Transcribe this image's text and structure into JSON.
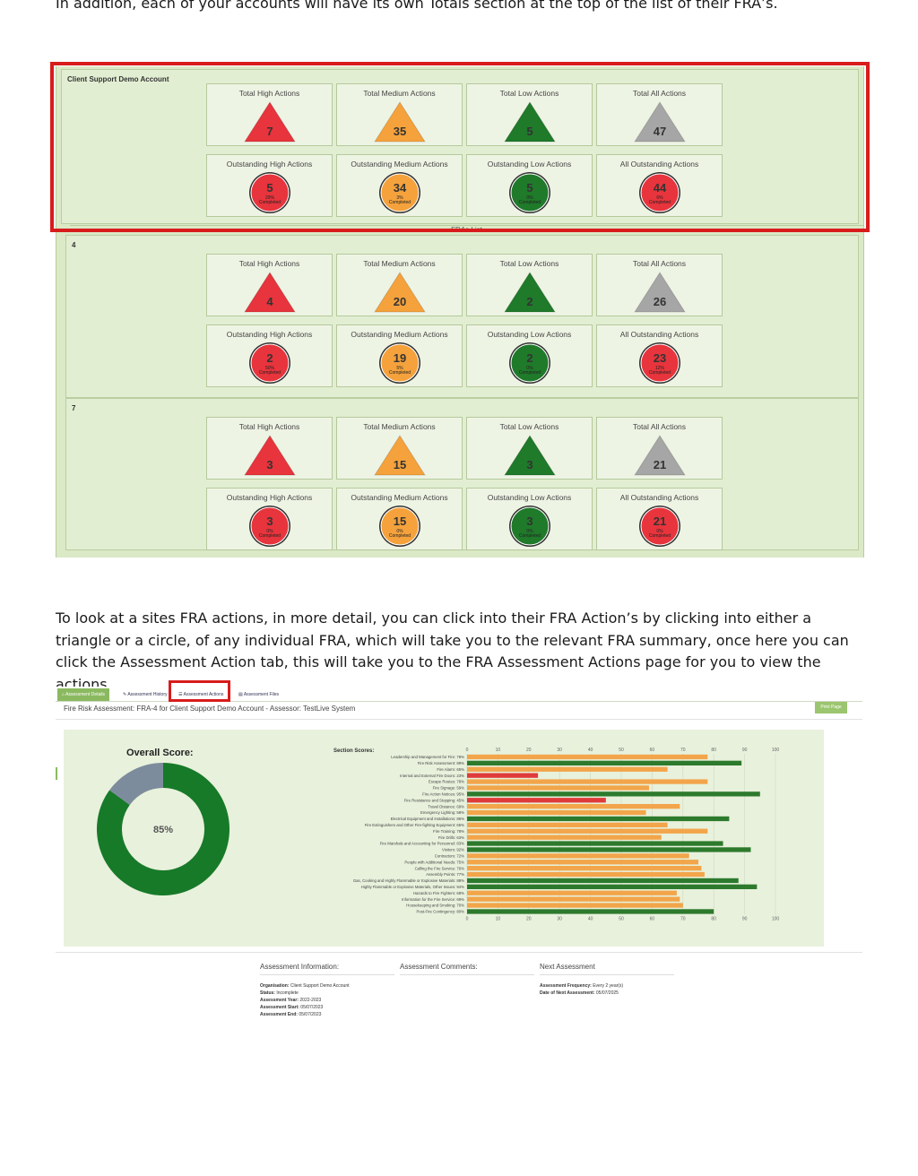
{
  "intro_text": "In addition, each of your accounts will have its own Totals section at the top of the list of their FRA’s.",
  "middle_text": "To look at a sites FRA actions, in more detail, you can click into their FRA Action’s by clicking into either a triangle or a circle, of any individual FRA, which will take you to the relevant FRA summary, once here you can click the Assessment Action tab, this will take you to the FRA Assessment Actions page for you to view the actions.",
  "colors": {
    "high": "#e8343c",
    "medium": "#f5a23c",
    "low": "#1f7a2a",
    "all": "#a6a6a6",
    "highlight": "#d81c1c"
  },
  "groups": [
    {
      "label": "Client Support Demo Account",
      "totals": [
        {
          "title": "Total High Actions",
          "value": "7",
          "level": "high"
        },
        {
          "title": "Total Medium Actions",
          "value": "35",
          "level": "medium"
        },
        {
          "title": "Total Low Actions",
          "value": "5",
          "level": "low"
        },
        {
          "title": "Total All Actions",
          "value": "47",
          "level": "all"
        }
      ],
      "outstanding": [
        {
          "title": "Outstanding High Actions",
          "value": "5",
          "pct": "29%",
          "sub": "Completed",
          "level": "high"
        },
        {
          "title": "Outstanding Medium Actions",
          "value": "34",
          "pct": "3%",
          "sub": "Completed",
          "level": "medium"
        },
        {
          "title": "Outstanding Low Actions",
          "value": "5",
          "pct": "0%",
          "sub": "Completed",
          "level": "low"
        },
        {
          "title": "All Outstanding Actions",
          "value": "44",
          "pct": "6%",
          "sub": "Completed",
          "level": "high"
        }
      ]
    },
    {
      "label": "4",
      "totals": [
        {
          "title": "Total High Actions",
          "value": "4",
          "level": "high"
        },
        {
          "title": "Total Medium Actions",
          "value": "20",
          "level": "medium"
        },
        {
          "title": "Total Low Actions",
          "value": "2",
          "level": "low"
        },
        {
          "title": "Total All Actions",
          "value": "26",
          "level": "all"
        }
      ],
      "outstanding": [
        {
          "title": "Outstanding High Actions",
          "value": "2",
          "pct": "50%",
          "sub": "Completed",
          "level": "high"
        },
        {
          "title": "Outstanding Medium Actions",
          "value": "19",
          "pct": "5%",
          "sub": "Completed",
          "level": "medium"
        },
        {
          "title": "Outstanding Low Actions",
          "value": "2",
          "pct": "0%",
          "sub": "Completed",
          "level": "low"
        },
        {
          "title": "All Outstanding Actions",
          "value": "23",
          "pct": "12%",
          "sub": "Completed",
          "level": "high"
        }
      ]
    },
    {
      "label": "7",
      "totals": [
        {
          "title": "Total High Actions",
          "value": "3",
          "level": "high"
        },
        {
          "title": "Total Medium Actions",
          "value": "15",
          "level": "medium"
        },
        {
          "title": "Total Low Actions",
          "value": "3",
          "level": "low"
        },
        {
          "title": "Total All Actions",
          "value": "21",
          "level": "all"
        }
      ],
      "outstanding": [
        {
          "title": "Outstanding High Actions",
          "value": "3",
          "pct": "0%",
          "sub": "Completed",
          "level": "high"
        },
        {
          "title": "Outstanding Medium Actions",
          "value": "15",
          "pct": "0%",
          "sub": "Completed",
          "level": "medium"
        },
        {
          "title": "Outstanding Low Actions",
          "value": "3",
          "pct": "0%",
          "sub": "Completed",
          "level": "low"
        },
        {
          "title": "All Outstanding Actions",
          "value": "21",
          "pct": "0%",
          "sub": "Completed",
          "level": "high"
        }
      ]
    }
  ],
  "fra_list_label": "FRAs List",
  "tabs": [
    {
      "label": "Assessment Details",
      "icon": "home-icon",
      "active": true
    },
    {
      "label": "Assessment History",
      "icon": "pencil-icon",
      "active": false
    },
    {
      "label": "Assessment Actions",
      "icon": "list-icon",
      "active": false
    },
    {
      "label": "Assessment Files",
      "icon": "file-icon",
      "active": false
    }
  ],
  "assessment_title": "Fire Risk Assessment: FRA-4 for Client Support Demo Account - Assessor: TestLive System",
  "print_label": "Print Page",
  "overall": {
    "title": "Overall Score:",
    "label": "85%",
    "value": 85
  },
  "chart_data": {
    "type": "bar",
    "title": "Section Scores:",
    "orientation": "horizontal",
    "xlim": [
      0,
      100
    ],
    "ticks": [
      "0",
      "10",
      "20",
      "30",
      "40",
      "50",
      "60",
      "70",
      "80",
      "90",
      "100"
    ],
    "categories": [
      "Leadership and Management for Fire: 78%",
      "Fire Risk Assessment: 89%",
      "Fire Alarm: 65%",
      "Internal and External Fire Doors: 23%",
      "Escape Routes: 78%",
      "Fire Signage: 59%",
      "Fire Action Notices: 95%",
      "Fire Resistance and Stopping: 45%",
      "Travel Distance: 69%",
      "Emergency Lighting: 58%",
      "Electrical Equipment and Installations: 85%",
      "Fire Extinguishers and Other Fire-fighting Equipment: 65%",
      "Fire Training: 78%",
      "Fire Drills: 63%",
      "Fire Marshals and Accounting for Personnel: 83%",
      "Visitors: 92%",
      "Contractors: 72%",
      "People with Additional Needs: 75%",
      "Calling the Fire Service: 76%",
      "Assembly Points: 77%",
      "Gas, Cooking and Highly Flammable or Explosive Materials: 88%",
      "Highly Flammable or Explosive Materials, Other Issues: 94%",
      "Hazards to Fire Fighters: 68%",
      "Information for the Fire Service: 69%",
      "Housekeeping and Smoking: 70%",
      "Post-Fire Contingency: 80%"
    ],
    "values": [
      78,
      89,
      65,
      23,
      78,
      59,
      95,
      45,
      69,
      58,
      85,
      65,
      78,
      63,
      83,
      92,
      72,
      75,
      76,
      77,
      88,
      94,
      68,
      69,
      70,
      80
    ]
  },
  "info": {
    "info_head": "Assessment Information:",
    "comments_head": "Assessment Comments:",
    "next_head": "Next Assessment",
    "lines": [
      {
        "k": "Organisation:",
        "v": "Client Support Demo Account"
      },
      {
        "k": "Status:",
        "v": "Incomplete"
      },
      {
        "k": "Assessment Year:",
        "v": "2022-2023"
      },
      {
        "k": "Assessment Start:",
        "v": "05/07/2023"
      },
      {
        "k": "Assessment End:",
        "v": "05/07/2023"
      }
    ],
    "next_lines": [
      {
        "k": "Assessment Frequency:",
        "v": "Every 2 year(s)"
      },
      {
        "k": "Date of Next Assessment:",
        "v": "05/07/2025"
      }
    ]
  }
}
